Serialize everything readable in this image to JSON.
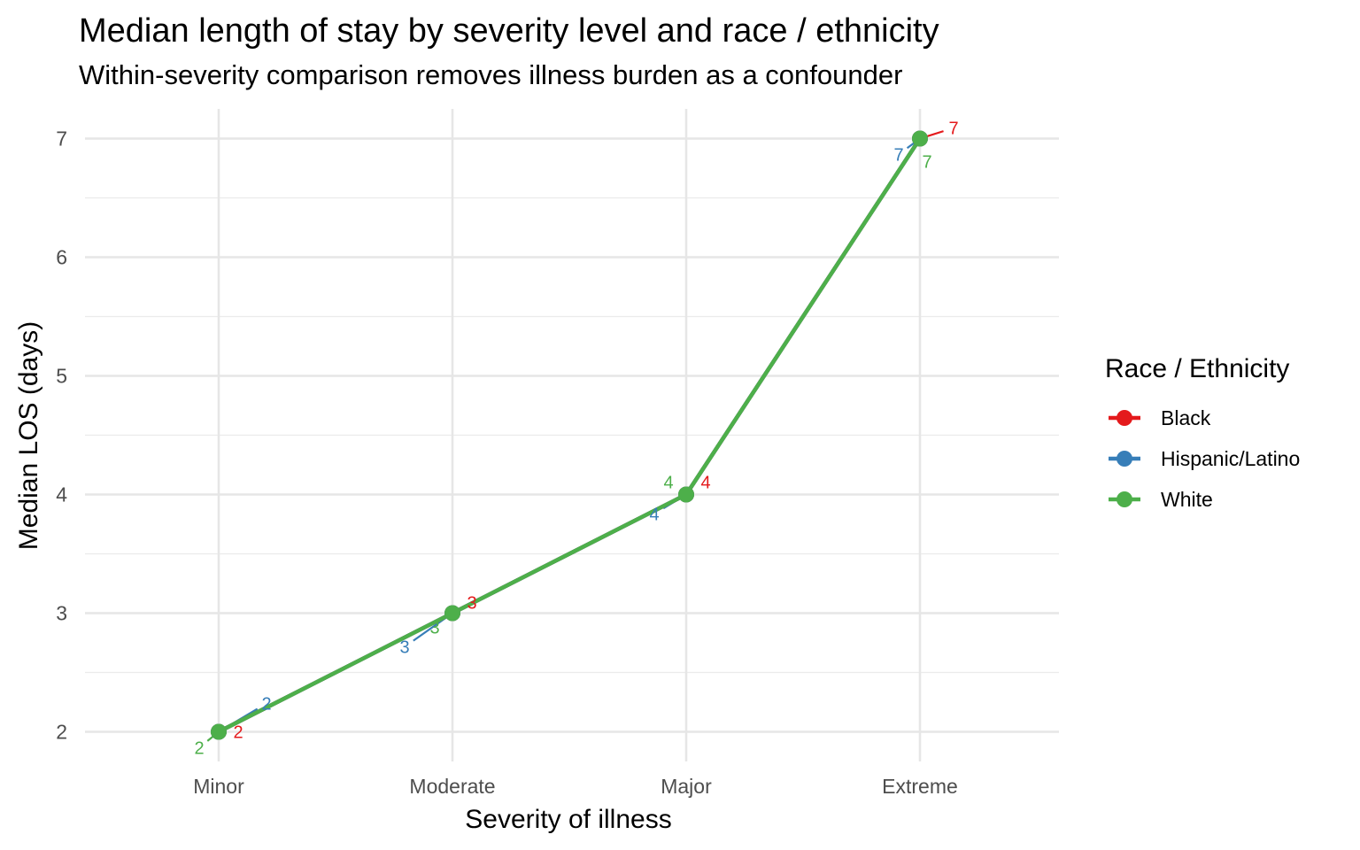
{
  "chart_data": {
    "type": "line",
    "title": "Median length of stay by severity level and race / ethnicity",
    "subtitle": "Within-severity comparison removes illness burden as a confounder",
    "xlabel": "Severity of illness",
    "ylabel": "Median LOS (days)",
    "categories": [
      "Minor",
      "Moderate",
      "Major",
      "Extreme"
    ],
    "ylim": [
      1.75,
      7.25
    ],
    "yticks": [
      2,
      3,
      4,
      5,
      6,
      7
    ],
    "grid": true,
    "legend": {
      "title": "Race / Ethnicity",
      "position": "right"
    },
    "series": [
      {
        "name": "Black",
        "color": "#e41a1c",
        "values": [
          2,
          3,
          4,
          7
        ]
      },
      {
        "name": "Hispanic/Latino",
        "color": "#377eb8",
        "values": [
          2,
          3,
          4,
          7
        ]
      },
      {
        "name": "White",
        "color": "#4daf4a",
        "values": [
          2,
          3,
          4,
          7
        ]
      }
    ],
    "data_labels": [
      {
        "series": "Black",
        "labels": [
          "2",
          "3",
          "4",
          "7"
        ]
      },
      {
        "series": "Hispanic/Latino",
        "labels": [
          "2",
          "3",
          "4",
          "7"
        ]
      },
      {
        "series": "White",
        "labels": [
          "2",
          "3",
          "4",
          "7"
        ]
      }
    ]
  }
}
